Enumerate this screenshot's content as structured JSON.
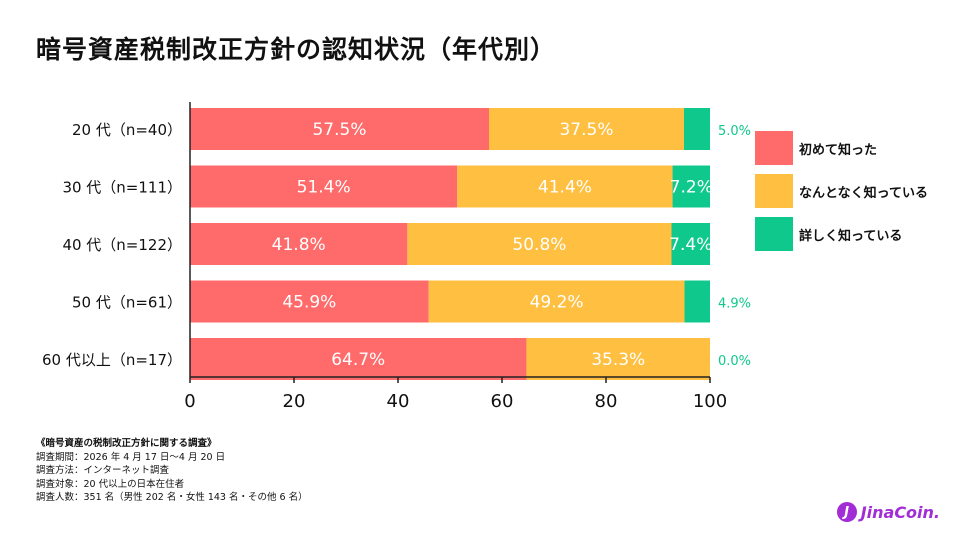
{
  "page": {
    "title": "暗号資産税制改正方針の認知状況（年代別）"
  },
  "chart_data": {
    "type": "bar",
    "orientation": "horizontal",
    "stacked": true,
    "categories": [
      "20 代（n=40）",
      "30 代（n=111）",
      "40 代（n=122）",
      "50 代（n=61）",
      "60 代以上（n=17）"
    ],
    "series": [
      {
        "name": "初めて知った",
        "color": "#ff6b6b",
        "values": [
          57.5,
          51.4,
          41.8,
          45.9,
          64.7
        ],
        "labels": [
          "57.5%",
          "51.4%",
          "41.8%",
          "45.9%",
          "64.7%"
        ]
      },
      {
        "name": "なんとなく知っている",
        "color": "#ffbf40",
        "values": [
          37.5,
          41.4,
          50.8,
          49.2,
          35.3
        ],
        "labels": [
          "37.5%",
          "41.4%",
          "50.8%",
          "49.2%",
          "35.3%"
        ]
      },
      {
        "name": "詳しく知っている",
        "color": "#0fc98c",
        "values": [
          5.0,
          7.2,
          7.4,
          4.9,
          0.0
        ],
        "labels": [
          "5.0%",
          "7.2%",
          "7.4%",
          "4.9%",
          "0.0%"
        ]
      }
    ],
    "xlim": [
      0,
      100
    ],
    "xticks": [
      "0",
      "20",
      "40",
      "60",
      "80",
      "100"
    ],
    "legend_position": "right"
  },
  "notes": {
    "title": "《暗号資産の税制改正方針に関する調査》",
    "lines": [
      "調査期間：2026 年 4 月 17 日〜4 月 20 日",
      "調査方法：インターネット調査",
      "調査対象：20 代以上の日本在住者",
      "調査人数：351 名（男性 202 名・女性 143 名・その他 6 名）"
    ]
  },
  "logo": {
    "mark": "J",
    "text": "JinaCoin."
  }
}
